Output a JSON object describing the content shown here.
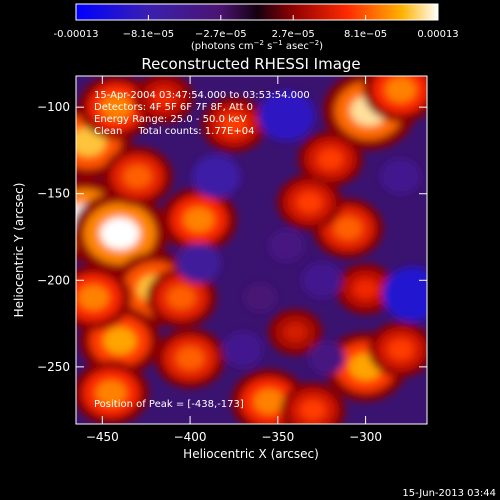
{
  "chart_data": {
    "type": "heatmap",
    "title": "Reconstructed RHESSI Image",
    "xlabel": "Heliocentric X (arcsec)",
    "ylabel": "Heliocentric Y (arcsec)",
    "xlim": [
      -465,
      -265
    ],
    "ylim": [
      -283,
      -82
    ],
    "x_ticks": [
      -450,
      -400,
      -350,
      -300
    ],
    "y_ticks": [
      -100,
      -150,
      -200,
      -250
    ],
    "colorbar": {
      "min": -0.00013,
      "max": 0.00013,
      "tick_labels": [
        "-0.00013",
        "−8.1e−05",
        "−2.7e−05",
        "2.7e−05",
        "8.1e−05",
        "0.00013"
      ],
      "unit_label": "(photons cm",
      "unit_sup1": "−2",
      "unit_mid": " s",
      "unit_sup2": "−1",
      "unit_end": " asec",
      "unit_sup3": "−2",
      "unit_close": ")"
    },
    "annotations": [
      "15-Apr-2004 03:47:54.000 to 03:53:54.000",
      "Detectors: 4F 5F 6F 7F 8F, Att 0",
      "Energy Range: 25.0 - 50.0 keV",
      "Clean     Total counts: 1.77E+04"
    ],
    "peak_label": "Position of Peak = [-438,-173]",
    "peak": [
      -438,
      -173
    ],
    "sources": [
      {
        "x": -458,
        "y": -120,
        "value": 0.00011
      },
      {
        "x": -460,
        "y": -165,
        "value": 0.00013
      },
      {
        "x": -440,
        "y": -173,
        "value": 0.00013
      },
      {
        "x": -442,
        "y": -100,
        "value": 9e-05
      },
      {
        "x": -430,
        "y": -140,
        "value": 8e-05
      },
      {
        "x": -420,
        "y": -205,
        "value": 0.00011
      },
      {
        "x": -405,
        "y": -210,
        "value": 8e-05
      },
      {
        "x": -395,
        "y": -165,
        "value": 9e-05
      },
      {
        "x": -400,
        "y": -245,
        "value": 8e-05
      },
      {
        "x": -440,
        "y": -235,
        "value": 0.0001
      },
      {
        "x": -455,
        "y": -210,
        "value": 9e-05
      },
      {
        "x": -445,
        "y": -265,
        "value": 9e-05
      },
      {
        "x": -375,
        "y": -110,
        "value": 7e-05
      },
      {
        "x": -355,
        "y": -270,
        "value": 9e-05
      },
      {
        "x": -330,
        "y": -275,
        "value": 7e-05
      },
      {
        "x": -300,
        "y": -250,
        "value": 0.0001
      },
      {
        "x": -280,
        "y": -240,
        "value": 7e-05
      },
      {
        "x": -298,
        "y": -102,
        "value": 0.00012
      },
      {
        "x": -280,
        "y": -90,
        "value": 9e-05
      },
      {
        "x": -320,
        "y": -130,
        "value": 7e-05
      },
      {
        "x": -310,
        "y": -170,
        "value": 8e-05
      },
      {
        "x": -332,
        "y": -155,
        "value": 7e-05
      },
      {
        "x": -300,
        "y": -205,
        "value": 6e-05
      },
      {
        "x": -340,
        "y": -230,
        "value": 5e-05
      },
      {
        "x": -415,
        "y": -95,
        "value": 6e-05
      },
      {
        "x": -360,
        "y": -210,
        "value": -3e-05
      },
      {
        "x": -345,
        "y": -105,
        "value": -9e-05
      },
      {
        "x": -385,
        "y": -140,
        "value": -7e-05
      },
      {
        "x": -325,
        "y": -200,
        "value": -5e-05
      },
      {
        "x": -273,
        "y": -208,
        "value": -0.0001
      },
      {
        "x": -395,
        "y": -190,
        "value": -6e-05
      },
      {
        "x": -345,
        "y": -180,
        "value": -4e-05
      },
      {
        "x": -370,
        "y": -240,
        "value": -5e-05
      },
      {
        "x": -322,
        "y": -245,
        "value": -4e-05
      },
      {
        "x": -280,
        "y": -140,
        "value": -5e-05
      }
    ]
  },
  "footer": {
    "date": "15-Jun-2013 03:44"
  }
}
